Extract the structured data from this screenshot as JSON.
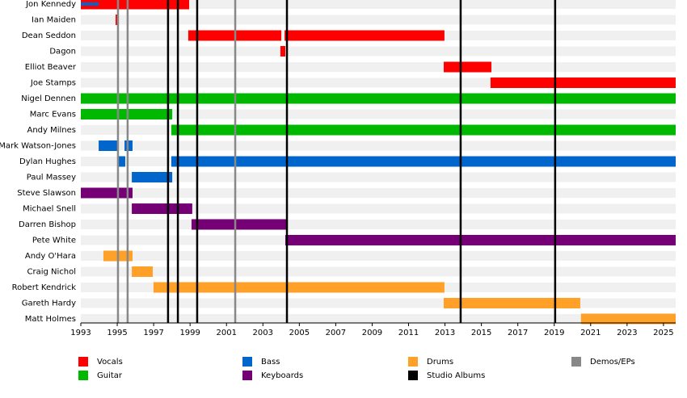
{
  "chart_data": {
    "type": "timeline",
    "categories": [
      "Jon Kennedy",
      "Ian Maiden",
      "Dean Seddon",
      "Dagon",
      "Elliot Beaver",
      "Joe Stamps",
      "Nigel Dennen",
      "Marc Evans",
      "Andy Milnes",
      "Mark Watson-Jones",
      "Dylan Hughes",
      "Paul Massey",
      "Steve Slawson",
      "Michael Snell",
      "Darren Bishop",
      "Pete White",
      "Andy O'Hara",
      "Craig Nichol",
      "Robert Kendrick",
      "Gareth Hardy",
      "Matt Holmes"
    ],
    "xlim": [
      1993,
      2025.67
    ],
    "xticks": [
      1993,
      1995,
      1997,
      1999,
      2001,
      2003,
      2005,
      2007,
      2009,
      2011,
      2013,
      2015,
      2017,
      2019,
      2021,
      2023,
      2025
    ],
    "series": [
      {
        "name": "Vocals",
        "color": "#ff0000",
        "bars": [
          {
            "row": 0,
            "start": 1993,
            "end": 1998.95
          },
          {
            "row": 1,
            "start": 1994.91,
            "end": 1995.04
          },
          {
            "row": 2,
            "start": 1998.9,
            "end": 2004.01
          },
          {
            "row": 2,
            "start": 2004.19,
            "end": 2012.97
          },
          {
            "row": 3,
            "start": 2003.96,
            "end": 2004.23
          },
          {
            "row": 4,
            "start": 2012.93,
            "end": 2015.55
          },
          {
            "row": 5,
            "start": 2015.5,
            "end": 2025.67
          }
        ]
      },
      {
        "name": "Guitar",
        "color": "#00b800",
        "bars": [
          {
            "row": 6,
            "start": 1993,
            "end": 2025.67
          },
          {
            "row": 7,
            "start": 1993,
            "end": 1998.02
          },
          {
            "row": 8,
            "start": 1997.97,
            "end": 2025.67
          }
        ]
      },
      {
        "name": "Bass",
        "color": "#0066cc",
        "bars": [
          {
            "row": 0,
            "start": 1993,
            "end": 1993.98,
            "thin": true
          },
          {
            "row": 9,
            "start": 1993.98,
            "end": 1995.04
          },
          {
            "row": 9,
            "start": 1995.4,
            "end": 1995.84
          },
          {
            "row": 10,
            "start": 1995.04,
            "end": 1995.44
          },
          {
            "row": 10,
            "start": 1997.97,
            "end": 2025.67
          },
          {
            "row": 11,
            "start": 1995.8,
            "end": 1998.02
          }
        ]
      },
      {
        "name": "Keyboards",
        "color": "#750075",
        "bars": [
          {
            "row": 12,
            "start": 1993,
            "end": 1995.84
          },
          {
            "row": 13,
            "start": 1995.8,
            "end": 1999.12
          },
          {
            "row": 14,
            "start": 1999.08,
            "end": 2004.32
          },
          {
            "row": 15,
            "start": 2004.23,
            "end": 2025.67
          }
        ]
      },
      {
        "name": "Drums",
        "color": "#ffa028",
        "bars": [
          {
            "row": 16,
            "start": 1994.24,
            "end": 1995.84
          },
          {
            "row": 17,
            "start": 1995.8,
            "end": 1996.95
          },
          {
            "row": 18,
            "start": 1996.99,
            "end": 2012.97
          },
          {
            "row": 19,
            "start": 2012.93,
            "end": 2020.43
          },
          {
            "row": 20,
            "start": 2020.47,
            "end": 2025.67
          }
        ]
      }
    ],
    "lines": [
      {
        "name": "Studio Albums",
        "color": "#000000",
        "x": [
          1997.79,
          1998.33,
          1999.39,
          2004.32,
          2013.86,
          2019.05
        ]
      },
      {
        "name": "Demos/EPs",
        "color": "#888888",
        "x": [
          1995.04,
          1995.57,
          2001.48
        ]
      }
    ]
  }
}
